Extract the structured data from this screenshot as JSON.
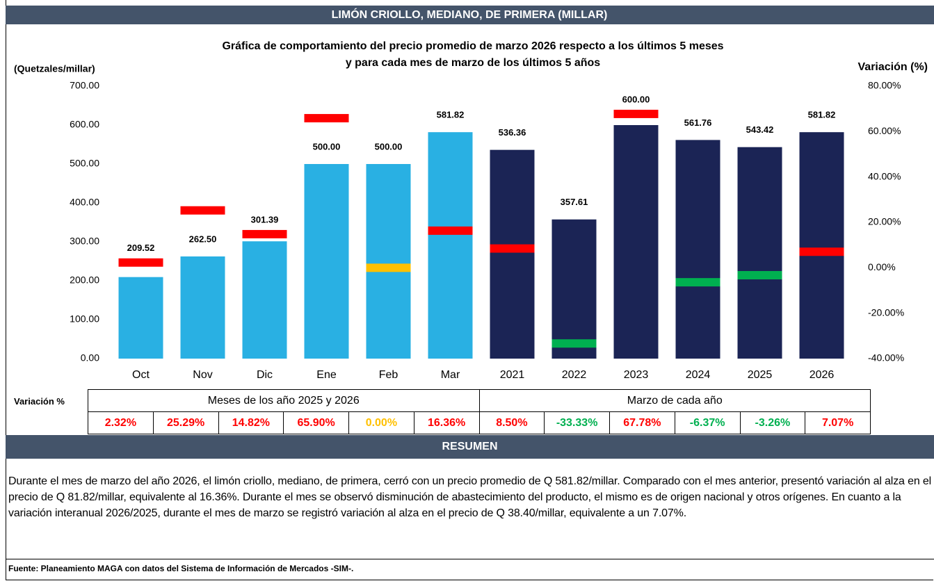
{
  "header": "LIMÓN CRIOLLO, MEDIANO, DE PRIMERA (MILLAR)",
  "chart_data": {
    "type": "bar",
    "title": [
      "Gráfica de comportamiento del precio promedio de marzo 2026 respecto a los últimos 5 meses",
      "y para cada mes de marzo de los últimos 5 años"
    ],
    "ylabel": "(Quetzales/millar)",
    "y2label": "Variación (%)",
    "categories": [
      "Oct",
      "Nov",
      "Dic",
      "Ene",
      "Feb",
      "Mar",
      "2021",
      "2022",
      "2023",
      "2024",
      "2025",
      "2026"
    ],
    "series": [
      {
        "type": "bar",
        "colors": [
          "#29b0e3",
          "#29b0e3",
          "#29b0e3",
          "#29b0e3",
          "#29b0e3",
          "#29b0e3",
          "#1b2455",
          "#1b2455",
          "#1b2455",
          "#1b2455",
          "#1b2455",
          "#1b2455"
        ],
        "values": [
          209.52,
          262.5,
          301.39,
          500,
          500,
          581.82,
          536.36,
          357.61,
          600,
          561.76,
          543.42,
          581.82
        ],
        "value_labels": [
          "209.52",
          "262.50",
          "301.39",
          "500.00",
          "500.00",
          "581.82",
          "536.36",
          "357.61",
          "600.00",
          "561.76",
          "543.42",
          "581.82"
        ]
      },
      {
        "type": "marker",
        "axis": "y2",
        "colors": [
          "#ff0000",
          "#ff0000",
          "#ff0000",
          "#ff0000",
          "#ffc000",
          "#ff0000",
          "#ff0000",
          "#00b050",
          "#ff0000",
          "#00b050",
          "#00b050",
          "#ff0000"
        ],
        "values": [
          2.32,
          25.29,
          14.82,
          65.9,
          0,
          16.36,
          8.5,
          -33.33,
          67.78,
          -6.37,
          -3.26,
          7.07
        ],
        "value_labels": [
          "2.32%",
          "25.29%",
          "14.82%",
          "65.90%",
          "0.00%",
          "16.36%",
          "8.50%",
          "-33.33%",
          "67.78%",
          "-6.37%",
          "-3.26%",
          "7.07%"
        ]
      }
    ],
    "ylim": [
      0,
      700
    ],
    "yticks": [
      {
        "value": 0,
        "label": "0.00"
      },
      {
        "value": 100,
        "label": "100.00"
      },
      {
        "value": 200,
        "label": "200.00"
      },
      {
        "value": 300,
        "label": "300.00"
      },
      {
        "value": 400,
        "label": "400.00"
      },
      {
        "value": 500,
        "label": "500.00"
      },
      {
        "value": 600,
        "label": "600.00"
      },
      {
        "value": 700,
        "label": "700.00"
      }
    ],
    "y2lim": [
      -40,
      80
    ],
    "y2ticks": [
      {
        "value": -40,
        "label": "-40.00%"
      },
      {
        "value": -20,
        "label": "-20.00%"
      },
      {
        "value": 0,
        "label": "0.00%"
      },
      {
        "value": 20,
        "label": "20.00%"
      },
      {
        "value": 40,
        "label": "40.00%"
      },
      {
        "value": 60,
        "label": "60.00%"
      },
      {
        "value": 80,
        "label": "80.00%"
      }
    ]
  },
  "table": {
    "label": "Variación %",
    "groups": [
      "Meses de los año 2025 y 2026",
      "Marzo de cada año"
    ]
  },
  "summary": {
    "title": "RESUMEN",
    "text": "Durante el mes de marzo del año 2026, el limón criollo, mediano, de primera, cerró con un precio promedio de Q 581.82/millar. Comparado con el mes anterior, presentó variación al alza en el precio de Q 81.82/millar, equivalente al 16.36%. Durante el mes se observó disminución de abastecimiento del producto, el mismo es de origen nacional y otros orígenes. En cuanto a la variación interanual 2026/2025, durante el mes de marzo se registró variación al alza en el precio de Q 38.40/millar, equivalente a un 7.07%."
  },
  "source": "Fuente: Planeamiento MAGA con datos del  Sistema de Información de Mercados -SIM-."
}
